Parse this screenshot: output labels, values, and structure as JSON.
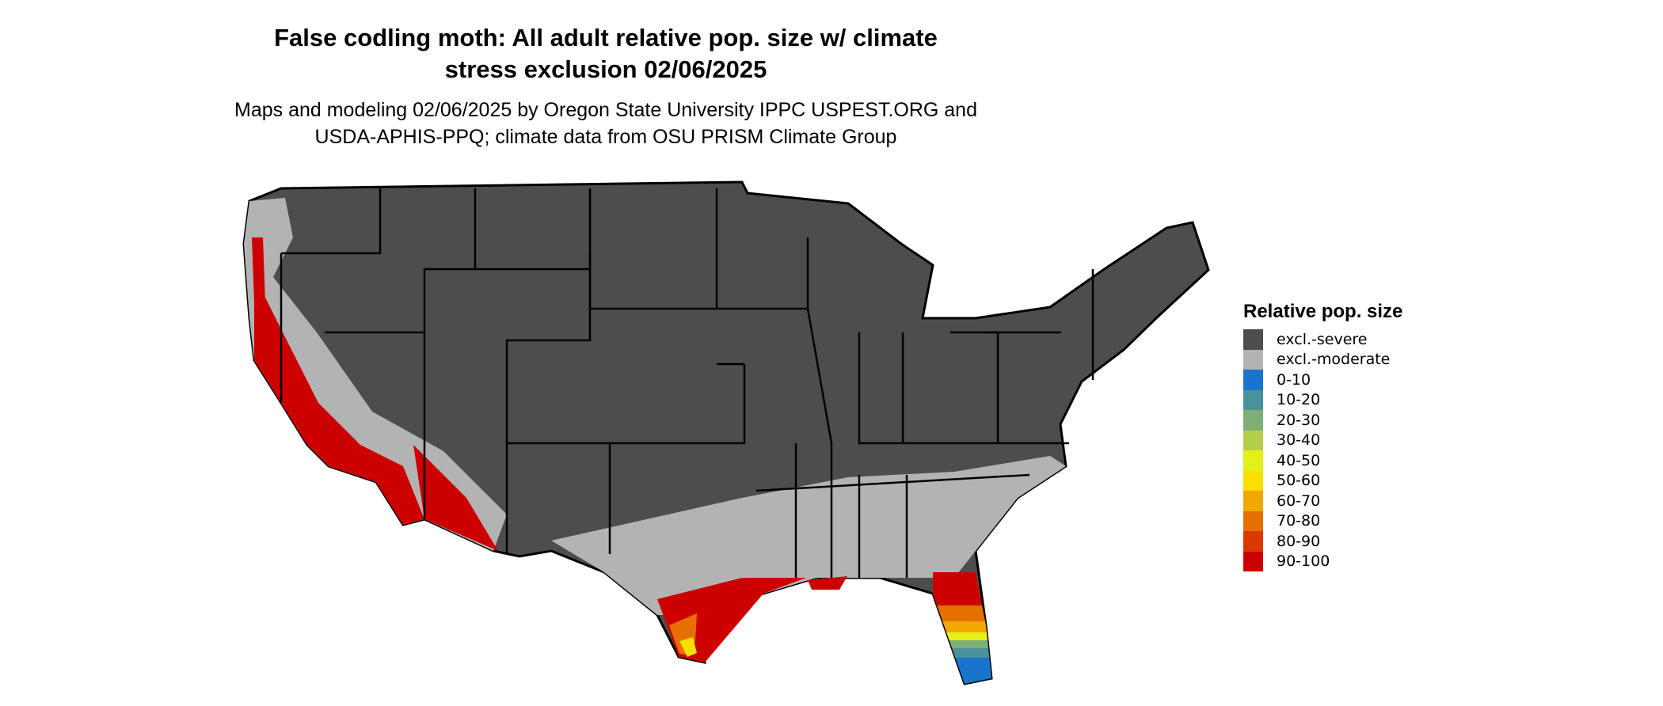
{
  "title": {
    "line1": "False codling moth: All adult relative pop. size w/ climate",
    "line2": "stress exclusion 02/06/2025"
  },
  "subtitle": {
    "line1": "Maps and modeling 02/06/2025 by Oregon State University IPPC USPEST.ORG and",
    "line2": "USDA-APHIS-PPQ; climate data from OSU PRISM Climate Group"
  },
  "legend": {
    "title": "Relative pop. size",
    "items": [
      {
        "label": "excl.-severe",
        "color": "#4d4d4d"
      },
      {
        "label": "excl.-moderate",
        "color": "#b3b3b3"
      },
      {
        "label": "0-10",
        "color": "#1874cd"
      },
      {
        "label": "10-20",
        "color": "#4a919e"
      },
      {
        "label": "20-30",
        "color": "#7eaf75"
      },
      {
        "label": "30-40",
        "color": "#b3cf4b"
      },
      {
        "label": "40-50",
        "color": "#e5ef18"
      },
      {
        "label": "50-60",
        "color": "#f9e000"
      },
      {
        "label": "60-70",
        "color": "#f0a800"
      },
      {
        "label": "70-80",
        "color": "#e57000"
      },
      {
        "label": "80-90",
        "color": "#db3800"
      },
      {
        "label": "90-100",
        "color": "#cd0000"
      }
    ]
  }
}
